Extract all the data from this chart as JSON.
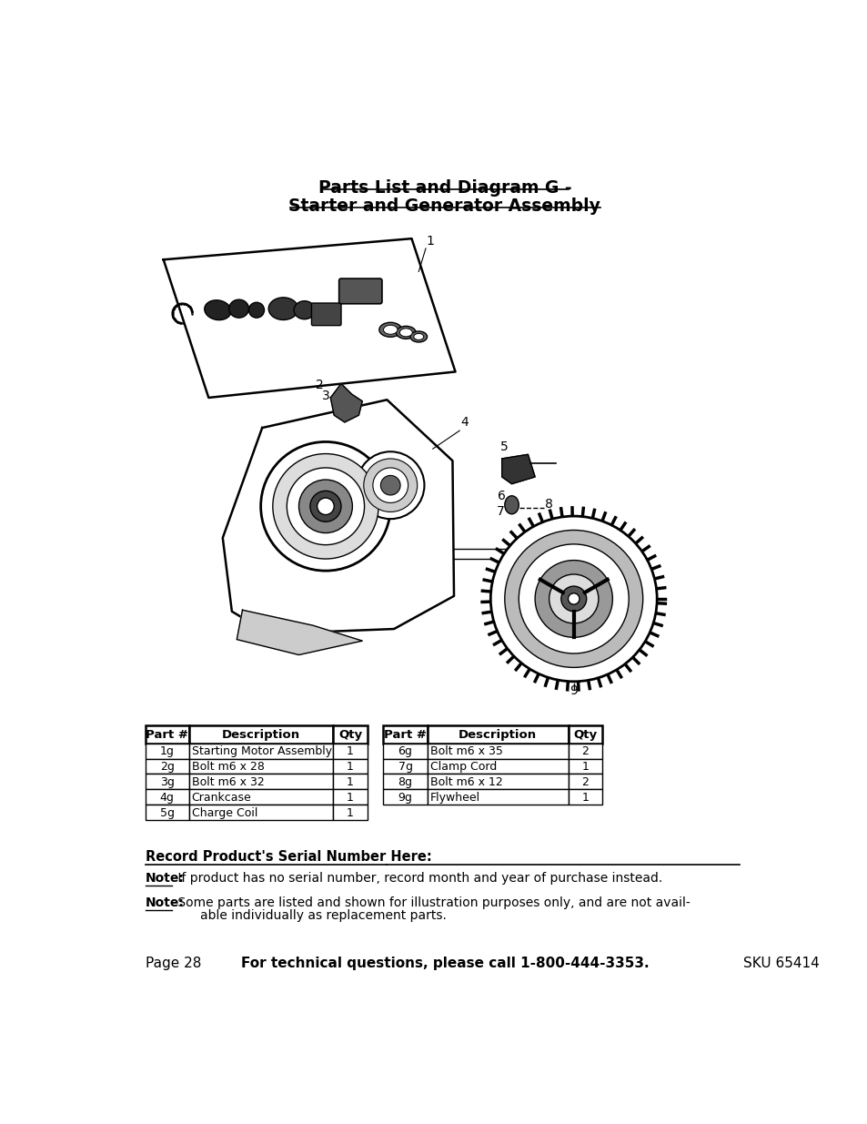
{
  "title_line1": "Parts List and Diagram G -",
  "title_line2": "Starter and Generator Assembly",
  "bg_color": "#ffffff",
  "table1": {
    "headers": [
      "Part #",
      "Description",
      "Qty"
    ],
    "rows": [
      [
        "1g",
        "Starting Motor Assembly",
        "1"
      ],
      [
        "2g",
        "Bolt m6 x 28",
        "1"
      ],
      [
        "3g",
        "Bolt m6 x 32",
        "1"
      ],
      [
        "4g",
        "Crankcase",
        "1"
      ],
      [
        "5g",
        "Charge Coil",
        "1"
      ]
    ]
  },
  "table2": {
    "headers": [
      "Part #",
      "Description",
      "Qty"
    ],
    "rows": [
      [
        "6g",
        "Bolt m6 x 35",
        "2"
      ],
      [
        "7g",
        "Clamp Cord",
        "1"
      ],
      [
        "8g",
        "Bolt m6 x 12",
        "2"
      ],
      [
        "9g",
        "Flywheel",
        "1"
      ]
    ]
  },
  "serial_label": "Record Product's Serial Number Here:",
  "note1_label": "Note:",
  "note1_text": " If product has no serial number, record month and year of purchase instead.",
  "note2_label": "Note:",
  "note2_line1": " Some parts are listed and shown for illustration purposes only, and are not avail-",
  "note2_line2": "able individually as replacement parts.",
  "footer_page": "Page 28",
  "footer_center": "For technical questions, please call 1-800-444-3353.",
  "footer_sku": "SKU 65414"
}
